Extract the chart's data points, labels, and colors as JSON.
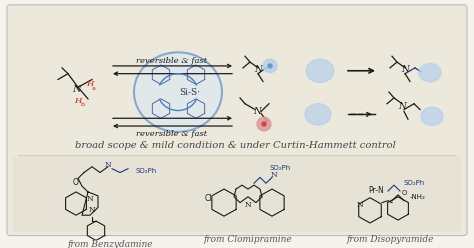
{
  "bg_outer": "#f5f3ec",
  "bg_box": "#ece9dc",
  "border_color": "#bbbbbb",
  "title_text": "broad scope & mild condition & under Curtin-Hammett control",
  "title_fontsize": 7.2,
  "rev_fast": "reversible & fast",
  "from_labels": [
    "from Benzydamine",
    "from Clomipramine",
    "from Disopyramide"
  ],
  "label_fontsize": 6.5,
  "black": "#1a1a1a",
  "blue": "#4a7dbf",
  "dark_blue": "#1a3a7a",
  "red": "#cc2200",
  "light_blue": "#b8d0ea",
  "gray": "#777777",
  "fig_width": 4.74,
  "fig_height": 2.48,
  "dpi": 100
}
